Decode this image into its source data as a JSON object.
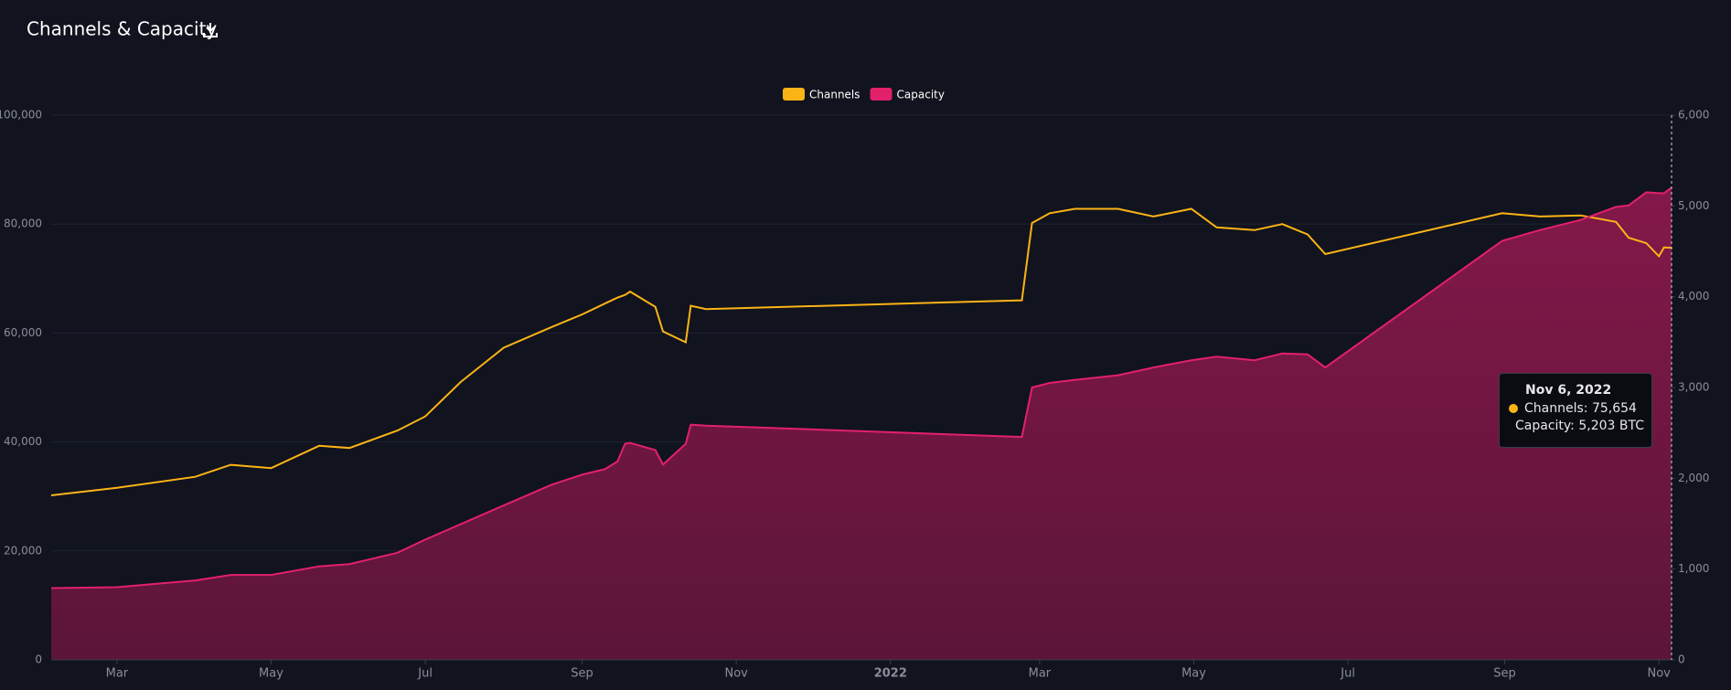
{
  "chart_data": {
    "type": "line",
    "title": "Channels & Capacity",
    "x": [
      "2021-02-03",
      "2021-03-01",
      "2021-04-01",
      "2021-04-15",
      "2021-05-01",
      "2021-05-20",
      "2021-06-01",
      "2021-06-20",
      "2021-07-01",
      "2021-07-15",
      "2021-08-01",
      "2021-08-20",
      "2021-09-01",
      "2021-09-10",
      "2021-09-15",
      "2021-09-18",
      "2021-09-20",
      "2021-09-30",
      "2021-10-03",
      "2021-10-12",
      "2021-10-14",
      "2021-10-20",
      "2022-02-22",
      "2022-02-26",
      "2022-03-05",
      "2022-03-15",
      "2022-04-01",
      "2022-04-15",
      "2022-04-30",
      "2022-05-10",
      "2022-05-25",
      "2022-06-05",
      "2022-06-15",
      "2022-06-22",
      "2022-08-31",
      "2022-09-15",
      "2022-10-01",
      "2022-10-15",
      "2022-10-20",
      "2022-10-27",
      "2022-11-01",
      "2022-11-03",
      "2022-11-06"
    ],
    "series": [
      {
        "name": "Channels",
        "color": "#fbb416",
        "axis": "y",
        "values": [
          30200,
          31600,
          33600,
          35800,
          35200,
          39300,
          38900,
          42100,
          44700,
          51000,
          57300,
          61100,
          63400,
          65400,
          66500,
          67000,
          67600,
          64800,
          60300,
          58300,
          65000,
          64400,
          66000,
          80200,
          82000,
          82800,
          82800,
          81400,
          82800,
          79400,
          78900,
          80000,
          78100,
          74500,
          82000,
          81400,
          81600,
          80400,
          77500,
          76500,
          74100,
          75700,
          75654
        ]
      },
      {
        "name": "Capacity",
        "color": "#e3206a",
        "axis": "y2",
        "fill": "#7b1843",
        "values": [
          790,
          800,
          875,
          935,
          935,
          1030,
          1055,
          1180,
          1325,
          1495,
          1700,
          1930,
          2040,
          2100,
          2185,
          2380,
          2390,
          2310,
          2150,
          2380,
          2590,
          2580,
          2455,
          3000,
          3050,
          3085,
          3135,
          3220,
          3300,
          3340,
          3300,
          3375,
          3365,
          3220,
          4615,
          4735,
          4845,
          4990,
          5005,
          5150,
          5140,
          5140,
          5203
        ]
      }
    ],
    "xlim": [
      "2021-02-03",
      "2022-11-06"
    ],
    "xticks": [
      {
        "value": "2021-03-01",
        "label": "Mar"
      },
      {
        "value": "2021-05-01",
        "label": "May"
      },
      {
        "value": "2021-07-01",
        "label": "Jul"
      },
      {
        "value": "2021-09-01",
        "label": "Sep"
      },
      {
        "value": "2021-11-01",
        "label": "Nov"
      },
      {
        "value": "2022-01-01",
        "label": "2022"
      },
      {
        "value": "2022-03-01",
        "label": "Mar"
      },
      {
        "value": "2022-05-01",
        "label": "May"
      },
      {
        "value": "2022-07-01",
        "label": "Jul"
      },
      {
        "value": "2022-09-01",
        "label": "Sep"
      },
      {
        "value": "2022-11-01",
        "label": "Nov"
      }
    ],
    "ylim": [
      0,
      100000
    ],
    "yticks": [
      0,
      {
        "value": 20000,
        "label": "20,000"
      },
      {
        "value": 40000,
        "label": "40,000"
      },
      {
        "value": 60000,
        "label": "60,000"
      },
      {
        "value": 80000,
        "label": "80,000"
      },
      {
        "value": 100000,
        "label": "100,000"
      }
    ],
    "y2lim": [
      0,
      6000
    ],
    "y2ticks": [
      0,
      {
        "value": 1000,
        "label": "1,000"
      },
      {
        "value": 2000,
        "label": "2,000"
      },
      {
        "value": 3000,
        "label": "3,000"
      },
      {
        "value": 4000,
        "label": "4,000"
      },
      {
        "value": 5000,
        "label": "5,000"
      },
      {
        "value": 6000,
        "label": "6,000"
      }
    ],
    "grid": true,
    "legend": "top",
    "tooltip": {
      "title": "Nov 6, 2022",
      "lines": [
        "Channels: 75,654",
        "Capacity: 5,203 BTC"
      ]
    }
  }
}
